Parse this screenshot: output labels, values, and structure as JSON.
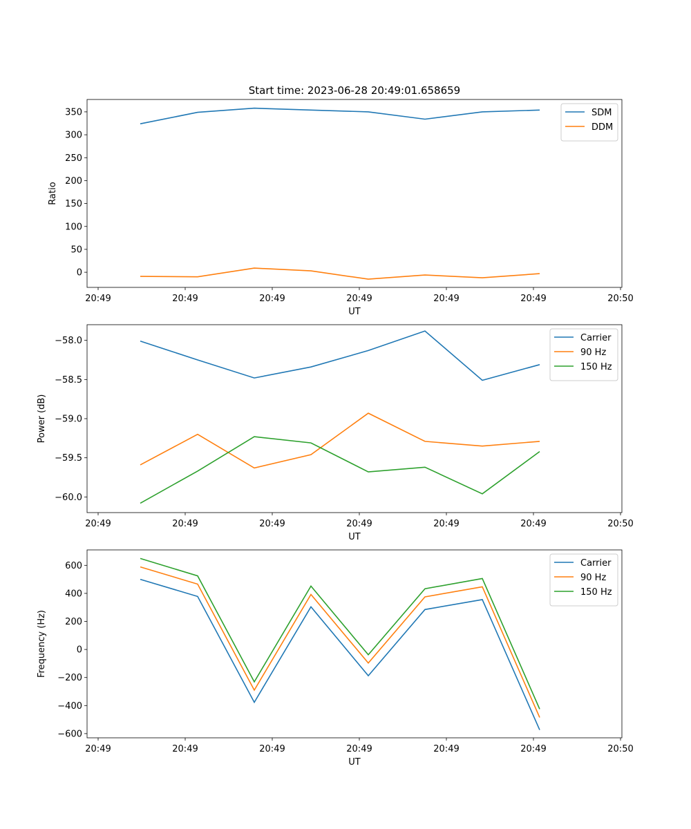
{
  "figure_title": "Start time: 2023-06-28 20:49:01.658659",
  "colors": {
    "blue": "#1f77b4",
    "orange": "#ff7f0e",
    "green": "#2ca02c"
  },
  "chart_data": [
    {
      "type": "line",
      "title": "Start time: 2023-06-28 20:49:01.658659",
      "xlabel": "UT",
      "ylabel": "Ratio",
      "x_tick_labels": [
        "20:49",
        "20:49",
        "20:49",
        "20:49",
        "20:49",
        "20:49",
        "20:50"
      ],
      "y_ticks": [
        0,
        50,
        100,
        150,
        200,
        250,
        300,
        350
      ],
      "y_tick_labels": [
        "0",
        "50",
        "100",
        "150",
        "200",
        "250",
        "300",
        "350"
      ],
      "ylim": [
        -33,
        377
      ],
      "legend_position": "top-right",
      "series": [
        {
          "name": "SDM",
          "color": "#1f77b4",
          "values": [
            324,
            349,
            358,
            354,
            350,
            334,
            350,
            354
          ]
        },
        {
          "name": "DDM",
          "color": "#ff7f0e",
          "values": [
            -9,
            -10,
            9,
            3,
            -15,
            -6,
            -12,
            -3
          ]
        }
      ]
    },
    {
      "type": "line",
      "xlabel": "UT",
      "ylabel": "Power (dB)",
      "x_tick_labels": [
        "20:49",
        "20:49",
        "20:49",
        "20:49",
        "20:49",
        "20:49",
        "20:50"
      ],
      "y_ticks": [
        -58.0,
        -58.5,
        -59.0,
        -59.5,
        -60.0
      ],
      "y_tick_labels": [
        "−58.0",
        "−58.5",
        "−59.0",
        "−59.5",
        "−60.0"
      ],
      "ylim": [
        -60.2,
        -57.8
      ],
      "legend_position": "top-right",
      "series": [
        {
          "name": "Carrier",
          "color": "#1f77b4",
          "values": [
            -58.01,
            -58.25,
            -58.48,
            -58.34,
            -58.13,
            -57.88,
            -58.51,
            -58.31
          ]
        },
        {
          "name": "90 Hz",
          "color": "#ff7f0e",
          "values": [
            -59.59,
            -59.2,
            -59.63,
            -59.46,
            -58.93,
            -59.29,
            -59.35,
            -59.29
          ]
        },
        {
          "name": "150 Hz",
          "color": "#2ca02c",
          "values": [
            -60.08,
            -59.67,
            -59.23,
            -59.31,
            -59.68,
            -59.62,
            -59.96,
            -59.42
          ]
        }
      ]
    },
    {
      "type": "line",
      "xlabel": "UT",
      "ylabel": "Frequency (Hz)",
      "x_tick_labels": [
        "20:49",
        "20:49",
        "20:49",
        "20:49",
        "20:49",
        "20:49",
        "20:50"
      ],
      "y_ticks": [
        -600,
        -400,
        -200,
        0,
        200,
        400,
        600
      ],
      "y_tick_labels": [
        "−600",
        "−400",
        "−200",
        "0",
        "200",
        "400",
        "600"
      ],
      "ylim": [
        -630,
        710
      ],
      "legend_position": "top-right",
      "series": [
        {
          "name": "Carrier",
          "color": "#1f77b4",
          "values": [
            500,
            378,
            -377,
            304,
            -187,
            285,
            356,
            -574
          ]
        },
        {
          "name": "90 Hz",
          "color": "#ff7f0e",
          "values": [
            589,
            466,
            -290,
            392,
            -97,
            375,
            447,
            -485
          ]
        },
        {
          "name": "150 Hz",
          "color": "#2ca02c",
          "values": [
            649,
            525,
            -231,
            452,
            -38,
            433,
            506,
            -425
          ]
        }
      ]
    }
  ]
}
